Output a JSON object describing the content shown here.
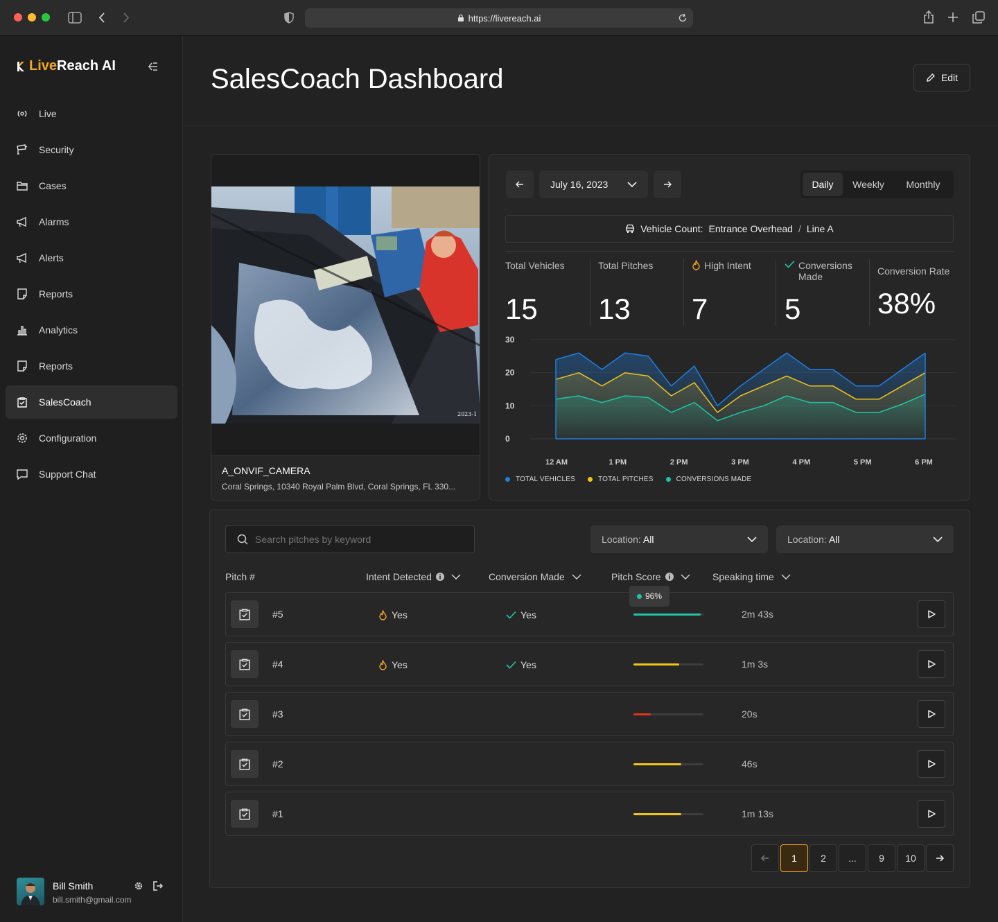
{
  "browser": {
    "url": "https://livereach.ai"
  },
  "app": {
    "logo_text_1": "Live",
    "logo_text_2": "Reach AI"
  },
  "sidebar": {
    "items": [
      {
        "label": "Live",
        "icon": "live-icon"
      },
      {
        "label": "Security",
        "icon": "camera-icon"
      },
      {
        "label": "Cases",
        "icon": "folder-icon"
      },
      {
        "label": "Alarms",
        "icon": "megaphone-icon"
      },
      {
        "label": "Alerts",
        "icon": "megaphone-icon"
      },
      {
        "label": "Reports",
        "icon": "note-icon"
      },
      {
        "label": "Analytics",
        "icon": "bar-chart-icon"
      },
      {
        "label": "Reports",
        "icon": "note-icon"
      },
      {
        "label": "SalesCoach",
        "icon": "clipboard-icon",
        "active": true
      },
      {
        "label": "Configuration",
        "icon": "gear-icon"
      },
      {
        "label": "Support Chat",
        "icon": "chat-icon"
      }
    ],
    "user": {
      "name": "Bill Smith",
      "email": "bill.smith@gmail.com"
    }
  },
  "header": {
    "title": "SalesCoach Dashboard",
    "edit_label": "Edit"
  },
  "camera": {
    "name": "A_ONVIF_CAMERA",
    "address": "Coral Springs, 10340 Royal Palm Blvd, Coral Springs, FL 330...",
    "timestamp_overlay": "2023-1"
  },
  "stats": {
    "date": "July 16, 2023",
    "periods": [
      "Daily",
      "Weekly",
      "Monthly"
    ],
    "active_period": "Daily",
    "vehicle_count_label": "Vehicle Count:",
    "location": "Entrance Overhead",
    "separator": "/",
    "line": "Line A",
    "tiles": [
      {
        "label": "Total Vehicles",
        "value": "15"
      },
      {
        "label": "Total Pitches",
        "value": "13"
      },
      {
        "label": "High Intent",
        "value": "7"
      },
      {
        "label": "Conversions Made",
        "value": "5"
      },
      {
        "label": "Conversion Rate",
        "value": "38%"
      }
    ]
  },
  "chart_data": {
    "type": "area",
    "x_tick_labels": [
      "12 AM",
      "1 PM",
      "2 PM",
      "3 PM",
      "4 PM",
      "5 PM",
      "6 PM"
    ],
    "y_ticks": [
      "30",
      "20",
      "10",
      "0"
    ],
    "ylim": [
      0,
      30
    ],
    "series": [
      {
        "name": "TOTAL VEHICLES",
        "color": "#1f7fe0",
        "values": [
          24,
          26,
          21,
          26,
          25,
          16,
          22,
          10,
          16,
          21,
          26,
          21,
          21,
          16,
          16,
          21,
          26
        ]
      },
      {
        "name": "TOTAL PITCHES",
        "color": "#f0c419",
        "values": [
          18,
          20,
          16,
          20,
          19,
          13,
          17,
          8,
          13,
          16,
          19,
          16,
          16,
          12,
          12,
          16,
          20
        ]
      },
      {
        "name": "CONVERSIONS MADE",
        "color": "#20c4a4",
        "values": [
          12,
          13,
          11,
          13,
          12.5,
          8,
          11,
          5.5,
          8,
          10,
          13,
          11,
          11,
          8,
          8,
          10.5,
          13.5
        ]
      }
    ],
    "grid": true,
    "legend_position": "bottom"
  },
  "table": {
    "search_placeholder": "Search pitches by keyword",
    "filters": [
      {
        "label": "Location:",
        "value": "All"
      },
      {
        "label": "Location:",
        "value": "All"
      }
    ],
    "columns": [
      "Pitch #",
      "Intent Detected",
      "Conversion Made",
      "Pitch Score",
      "Speaking time"
    ],
    "tooltip": "96%",
    "rows": [
      {
        "pitch": "#5",
        "intent": "Yes",
        "conversion": "Yes",
        "score": 0.96,
        "score_color": "#20c4a4",
        "time": "2m 43s"
      },
      {
        "pitch": "#4",
        "intent": "Yes",
        "conversion": "Yes",
        "score": 0.65,
        "score_color": "#f0c419",
        "time": "1m 3s"
      },
      {
        "pitch": "#3",
        "intent": "",
        "conversion": "",
        "score": 0.25,
        "score_color": "#e0321f",
        "time": "20s"
      },
      {
        "pitch": "#2",
        "intent": "",
        "conversion": "",
        "score": 0.68,
        "score_color": "#f0c419",
        "time": "46s"
      },
      {
        "pitch": "#1",
        "intent": "",
        "conversion": "",
        "score": 0.68,
        "score_color": "#f0c419",
        "time": "1m 13s"
      }
    ]
  },
  "pagination": {
    "pages": [
      "1",
      "2",
      "...",
      "9",
      "10"
    ],
    "current": "1"
  },
  "colors": {
    "accent": "#f5a524",
    "blue": "#1f7fe0",
    "yellow": "#f0c419",
    "teal": "#20c4a4"
  }
}
